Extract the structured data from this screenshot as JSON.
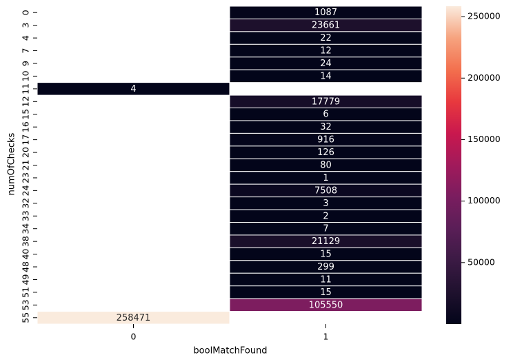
{
  "chart_data": {
    "type": "heatmap",
    "xlabel": "boolMatchFound",
    "ylabel": "numOfChecks",
    "x_categories": [
      "0",
      "1"
    ],
    "y_categories": [
      "0",
      "3",
      "4",
      "7",
      "9",
      "10",
      "11",
      "12",
      "15",
      "16",
      "17",
      "20",
      "21",
      "23",
      "24",
      "32",
      "33",
      "34",
      "38",
      "40",
      "48",
      "49",
      "51",
      "53",
      "55"
    ],
    "cells": [
      {
        "y": "0",
        "x": "1",
        "value": 1087
      },
      {
        "y": "3",
        "x": "1",
        "value": 23661
      },
      {
        "y": "4",
        "x": "1",
        "value": 22
      },
      {
        "y": "7",
        "x": "1",
        "value": 12
      },
      {
        "y": "9",
        "x": "1",
        "value": 24
      },
      {
        "y": "10",
        "x": "1",
        "value": 14
      },
      {
        "y": "11",
        "x": "0",
        "value": 4
      },
      {
        "y": "12",
        "x": "1",
        "value": 17779
      },
      {
        "y": "15",
        "x": "1",
        "value": 6
      },
      {
        "y": "16",
        "x": "1",
        "value": 32
      },
      {
        "y": "17",
        "x": "1",
        "value": 916
      },
      {
        "y": "20",
        "x": "1",
        "value": 126
      },
      {
        "y": "21",
        "x": "1",
        "value": 80
      },
      {
        "y": "23",
        "x": "1",
        "value": 1
      },
      {
        "y": "24",
        "x": "1",
        "value": 7508
      },
      {
        "y": "32",
        "x": "1",
        "value": 3
      },
      {
        "y": "33",
        "x": "1",
        "value": 2
      },
      {
        "y": "34",
        "x": "1",
        "value": 7
      },
      {
        "y": "38",
        "x": "1",
        "value": 21129
      },
      {
        "y": "40",
        "x": "1",
        "value": 15
      },
      {
        "y": "48",
        "x": "1",
        "value": 299
      },
      {
        "y": "49",
        "x": "1",
        "value": 11
      },
      {
        "y": "51",
        "x": "1",
        "value": 15
      },
      {
        "y": "53",
        "x": "1",
        "value": 105550
      },
      {
        "y": "55",
        "x": "0",
        "value": 258471
      }
    ],
    "colorbar": {
      "min": 1,
      "max": 258471,
      "ticks": [
        50000,
        100000,
        150000,
        200000,
        250000
      ],
      "tick_labels": [
        "50000",
        "100000",
        "150000",
        "200000",
        "250000"
      ],
      "colormap": "rocket"
    },
    "grid": false,
    "annotations": true
  }
}
